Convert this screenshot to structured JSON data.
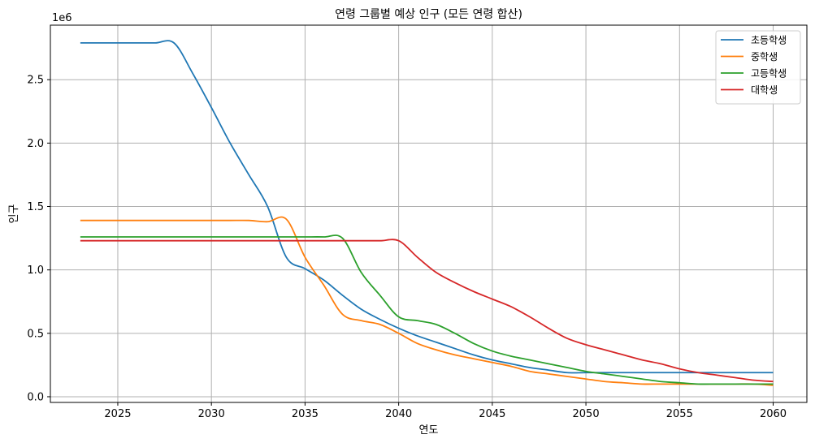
{
  "chart_data": {
    "type": "line",
    "title": "연령 그룹별 예상 인구 (모든 연령 합산)",
    "xlabel": "연도",
    "ylabel": "인구",
    "y_offset_label": "1e6",
    "xlim": [
      2021.4,
      2061.8
    ],
    "ylim": [
      -0.045,
      2.93
    ],
    "y_scale_factor": 1000000,
    "x_ticks": [
      2025,
      2030,
      2035,
      2040,
      2045,
      2050,
      2055,
      2060
    ],
    "x_tick_labels": [
      "2025",
      "2030",
      "2035",
      "2040",
      "2045",
      "2050",
      "2055",
      "2060"
    ],
    "y_ticks": [
      0.0,
      0.5,
      1.0,
      1.5,
      2.0,
      2.5
    ],
    "y_tick_labels": [
      "0.0",
      "0.5",
      "1.0",
      "1.5",
      "2.0",
      "2.5"
    ],
    "grid": true,
    "legend_position": "top-right",
    "x": [
      2023,
      2024,
      2025,
      2026,
      2027,
      2028,
      2029,
      2030,
      2031,
      2032,
      2033,
      2034,
      2035,
      2036,
      2037,
      2038,
      2039,
      2040,
      2041,
      2042,
      2043,
      2044,
      2045,
      2046,
      2047,
      2048,
      2049,
      2050,
      2051,
      2052,
      2053,
      2054,
      2055,
      2056,
      2057,
      2058,
      2059,
      2060
    ],
    "series": [
      {
        "name": "초등학생",
        "color": "#1f77b4",
        "values": [
          2.79,
          2.79,
          2.79,
          2.79,
          2.79,
          2.79,
          2.55,
          2.28,
          2.0,
          1.75,
          1.5,
          1.1,
          1.01,
          0.92,
          0.8,
          0.69,
          0.61,
          0.54,
          0.48,
          0.43,
          0.38,
          0.33,
          0.29,
          0.26,
          0.23,
          0.21,
          0.19,
          0.19,
          0.19,
          0.19,
          0.19,
          0.19,
          0.19,
          0.19,
          0.19,
          0.19,
          0.19,
          0.19
        ]
      },
      {
        "name": "중학생",
        "color": "#ff7f0e",
        "values": [
          1.39,
          1.39,
          1.39,
          1.39,
          1.39,
          1.39,
          1.39,
          1.39,
          1.39,
          1.39,
          1.38,
          1.4,
          1.1,
          0.88,
          0.65,
          0.6,
          0.57,
          0.5,
          0.42,
          0.37,
          0.33,
          0.3,
          0.27,
          0.24,
          0.2,
          0.18,
          0.16,
          0.14,
          0.12,
          0.11,
          0.1,
          0.1,
          0.1,
          0.1,
          0.1,
          0.1,
          0.1,
          0.09
        ]
      },
      {
        "name": "고등학생",
        "color": "#2ca02c",
        "values": [
          1.26,
          1.26,
          1.26,
          1.26,
          1.26,
          1.26,
          1.26,
          1.26,
          1.26,
          1.26,
          1.26,
          1.26,
          1.26,
          1.26,
          1.25,
          0.98,
          0.8,
          0.63,
          0.6,
          0.57,
          0.5,
          0.42,
          0.36,
          0.32,
          0.29,
          0.26,
          0.23,
          0.2,
          0.18,
          0.16,
          0.14,
          0.12,
          0.11,
          0.1,
          0.1,
          0.1,
          0.1,
          0.1
        ]
      },
      {
        "name": "대학생",
        "color": "#d62728",
        "values": [
          1.23,
          1.23,
          1.23,
          1.23,
          1.23,
          1.23,
          1.23,
          1.23,
          1.23,
          1.23,
          1.23,
          1.23,
          1.23,
          1.23,
          1.23,
          1.23,
          1.23,
          1.23,
          1.1,
          0.98,
          0.9,
          0.83,
          0.77,
          0.71,
          0.63,
          0.54,
          0.46,
          0.41,
          0.37,
          0.33,
          0.29,
          0.26,
          0.22,
          0.19,
          0.17,
          0.15,
          0.13,
          0.12
        ]
      }
    ]
  }
}
